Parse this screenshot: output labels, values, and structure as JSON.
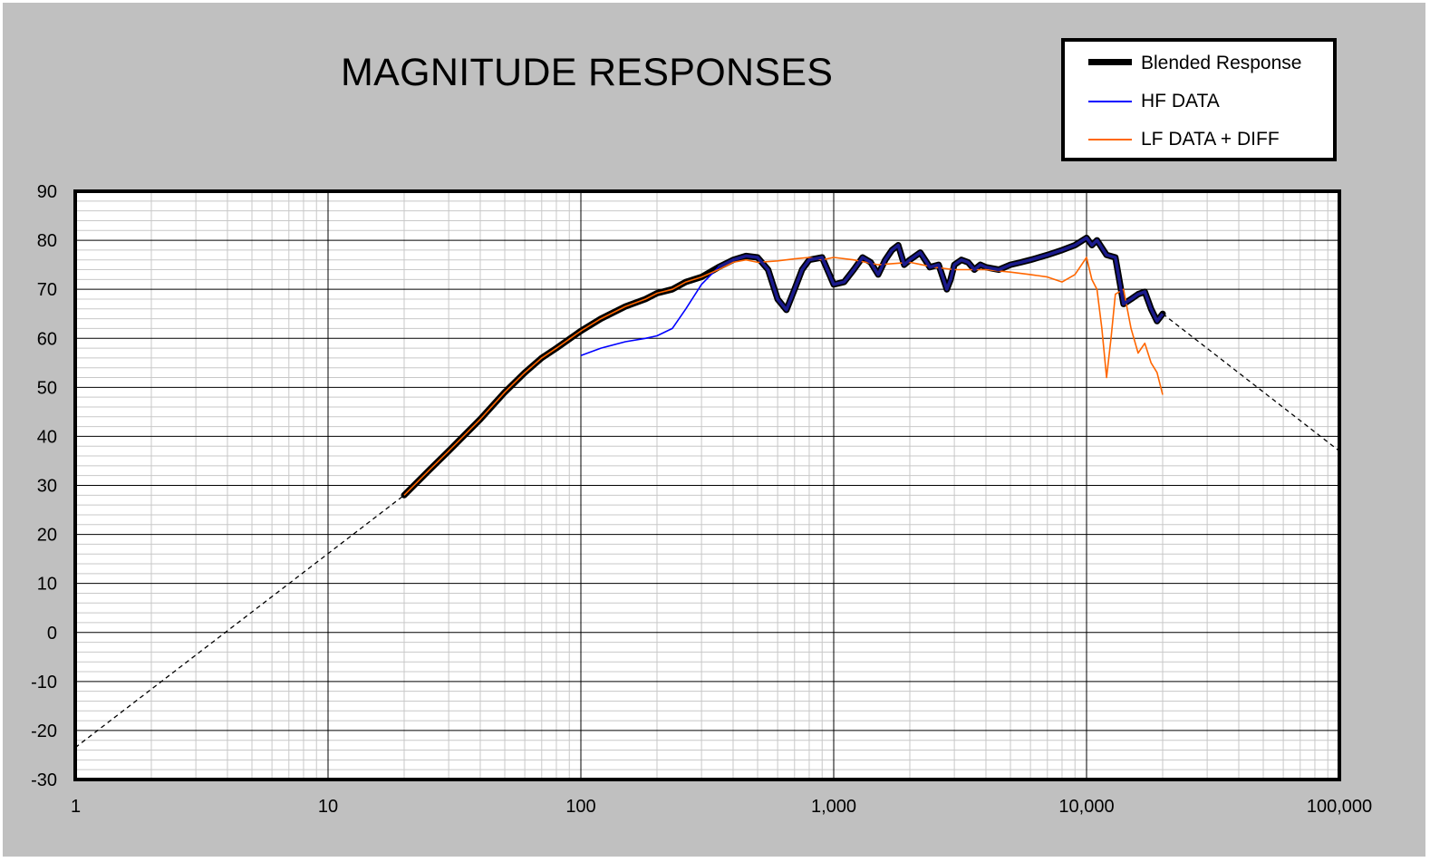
{
  "chart_data": {
    "type": "line",
    "title": "MAGNITUDE RESPONSES",
    "xlabel": "",
    "ylabel": "",
    "xscale": "log",
    "xlim": [
      1,
      100000
    ],
    "ylim": [
      -30,
      90
    ],
    "grid": true,
    "legend_position": "top-right",
    "x_tick_labels": [
      "1",
      "10",
      "100",
      "1,000",
      "10,000",
      "100,000"
    ],
    "x_ticks": [
      1,
      10,
      100,
      1000,
      10000,
      100000
    ],
    "y_ticks": [
      -30,
      -20,
      -10,
      0,
      10,
      20,
      30,
      40,
      50,
      60,
      70,
      80,
      90
    ],
    "y_tick_labels": [
      "-30",
      "-20",
      "-10",
      "0",
      "10",
      "20",
      "30",
      "40",
      "50",
      "60",
      "70",
      "80",
      "90"
    ],
    "series": [
      {
        "name": "Blended Response",
        "color": "#000000",
        "style": "thick-solid-with-navy-and-orange-core",
        "x": [
          20,
          25,
          30,
          40,
          50,
          60,
          70,
          80,
          100,
          120,
          150,
          180,
          200,
          230,
          260,
          300,
          350,
          400,
          450,
          500,
          550,
          600,
          650,
          700,
          750,
          800,
          900,
          1000,
          1100,
          1200,
          1300,
          1400,
          1500,
          1600,
          1700,
          1800,
          1900,
          2000,
          2200,
          2400,
          2600,
          2800,
          2900,
          3000,
          3200,
          3400,
          3600,
          3800,
          4000,
          4500,
          5000,
          5500,
          6000,
          7000,
          8000,
          9000,
          10000,
          10500,
          11000,
          12000,
          13000,
          14000,
          15000,
          16000,
          17000,
          18000,
          19000,
          20000
        ],
        "values": [
          28,
          33,
          37,
          43.5,
          49,
          53,
          56,
          58,
          61.5,
          64,
          66.5,
          68,
          69.2,
          70,
          71.5,
          72.5,
          74.5,
          76,
          76.8,
          76.5,
          74,
          68,
          65.8,
          70,
          74,
          76,
          76.5,
          71,
          71.5,
          74,
          76.5,
          75.5,
          73,
          76,
          78,
          79,
          75,
          76,
          77.5,
          74.5,
          75,
          70,
          72,
          75,
          76,
          75.5,
          74,
          75,
          74.5,
          74,
          75,
          75.5,
          76,
          77,
          78,
          79,
          80.5,
          79,
          80,
          77,
          76.5,
          67,
          68,
          69,
          69.5,
          66,
          63.5,
          65
        ]
      },
      {
        "name": "HF DATA",
        "color": "#0000ff",
        "style": "thin-solid",
        "x": [
          100,
          120,
          150,
          180,
          200,
          230,
          260,
          300,
          350,
          400,
          450,
          500,
          550,
          600,
          650,
          700,
          750,
          800,
          900,
          1000,
          1100,
          1200,
          1300,
          1400,
          1500,
          1600,
          1700,
          1800,
          1900,
          2000,
          2200,
          2400,
          2600,
          2800,
          2900,
          3000,
          3200,
          3400,
          3600,
          3800,
          4000,
          4500,
          5000,
          5500,
          6000,
          7000,
          8000,
          9000,
          10000,
          10500,
          11000,
          12000,
          13000,
          14000,
          15000,
          16000,
          17000,
          18000,
          19000,
          20000
        ],
        "values": [
          56.5,
          58,
          59.3,
          60,
          60.5,
          62,
          66,
          71,
          74.5,
          76,
          76.8,
          76.5,
          74,
          68,
          65.8,
          70,
          74,
          76,
          76.5,
          71,
          71.5,
          74,
          76.5,
          75.5,
          73,
          76,
          78,
          79,
          75,
          76,
          77.5,
          74.5,
          75,
          70,
          72,
          75,
          76,
          75.5,
          74,
          75,
          74.5,
          74,
          75,
          75.5,
          76,
          77,
          78,
          79,
          80.5,
          79,
          80,
          77,
          76.5,
          67,
          68,
          69,
          69.5,
          66,
          63.5,
          65
        ]
      },
      {
        "name": "LF DATA + DIFF",
        "color": "#ff6600",
        "style": "thin-solid",
        "x": [
          20,
          25,
          30,
          40,
          50,
          60,
          70,
          80,
          100,
          120,
          150,
          180,
          200,
          230,
          260,
          300,
          350,
          400,
          450,
          500,
          600,
          700,
          800,
          900,
          1000,
          1200,
          1500,
          2000,
          2500,
          3000,
          4000,
          5000,
          6000,
          7000,
          8000,
          9000,
          10000,
          10500,
          11000,
          11500,
          12000,
          12500,
          13000,
          14000,
          15000,
          16000,
          17000,
          18000,
          19000,
          20000
        ],
        "values": [
          28,
          33,
          37,
          43.5,
          49,
          53,
          56,
          58,
          61.5,
          64,
          66.5,
          68,
          69.2,
          70,
          71.5,
          72.5,
          74,
          75.5,
          76,
          75.5,
          75.8,
          76.2,
          76.5,
          76,
          76.5,
          76,
          75,
          75.5,
          74.5,
          74,
          74,
          73.5,
          73,
          72.5,
          71.5,
          73,
          76.5,
          72,
          70,
          62,
          52,
          60,
          69,
          70,
          62,
          57,
          59,
          55,
          53,
          48.5
        ]
      },
      {
        "name": "",
        "color": "#000000",
        "style": "dashed-extrapolation-low",
        "x": [
          1,
          20
        ],
        "values": [
          -23.5,
          28
        ]
      },
      {
        "name": "",
        "color": "#000000",
        "style": "dashed-extrapolation-high",
        "x": [
          20000,
          100000
        ],
        "values": [
          65,
          37
        ]
      }
    ]
  }
}
